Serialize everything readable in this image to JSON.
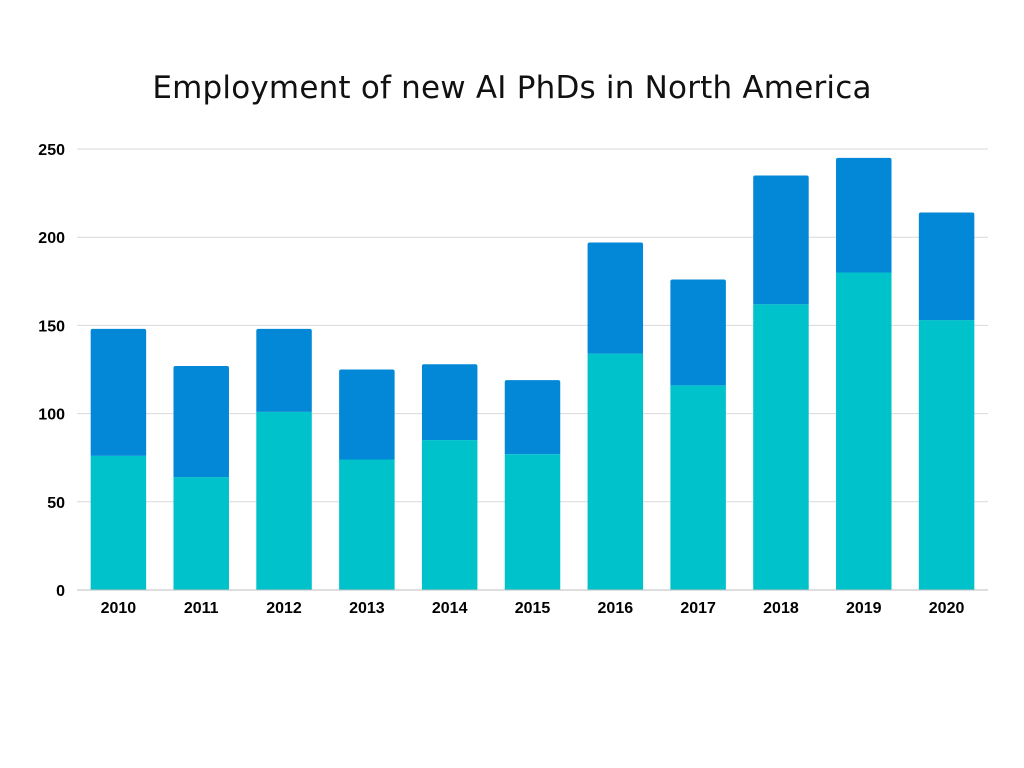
{
  "chart_data": {
    "type": "bar",
    "stacked": true,
    "title": "Employment of new AI PhDs in North America",
    "xlabel": "",
    "ylabel": "",
    "categories": [
      "2010",
      "2011",
      "2012",
      "2013",
      "2014",
      "2015",
      "2016",
      "2017",
      "2018",
      "2019",
      "2020"
    ],
    "series": [
      {
        "values": [
          76,
          64,
          101,
          74,
          85,
          77,
          134,
          116,
          162,
          180,
          153
        ],
        "color": "#00c2cb"
      },
      {
        "values": [
          72,
          63,
          47,
          51,
          43,
          42,
          63,
          60,
          73,
          65,
          61
        ],
        "color": "#0288d6"
      }
    ],
    "ylim": [
      0,
      250
    ],
    "yticks": [
      0,
      50,
      100,
      150,
      200,
      250
    ],
    "grid": true,
    "legend": "none"
  }
}
